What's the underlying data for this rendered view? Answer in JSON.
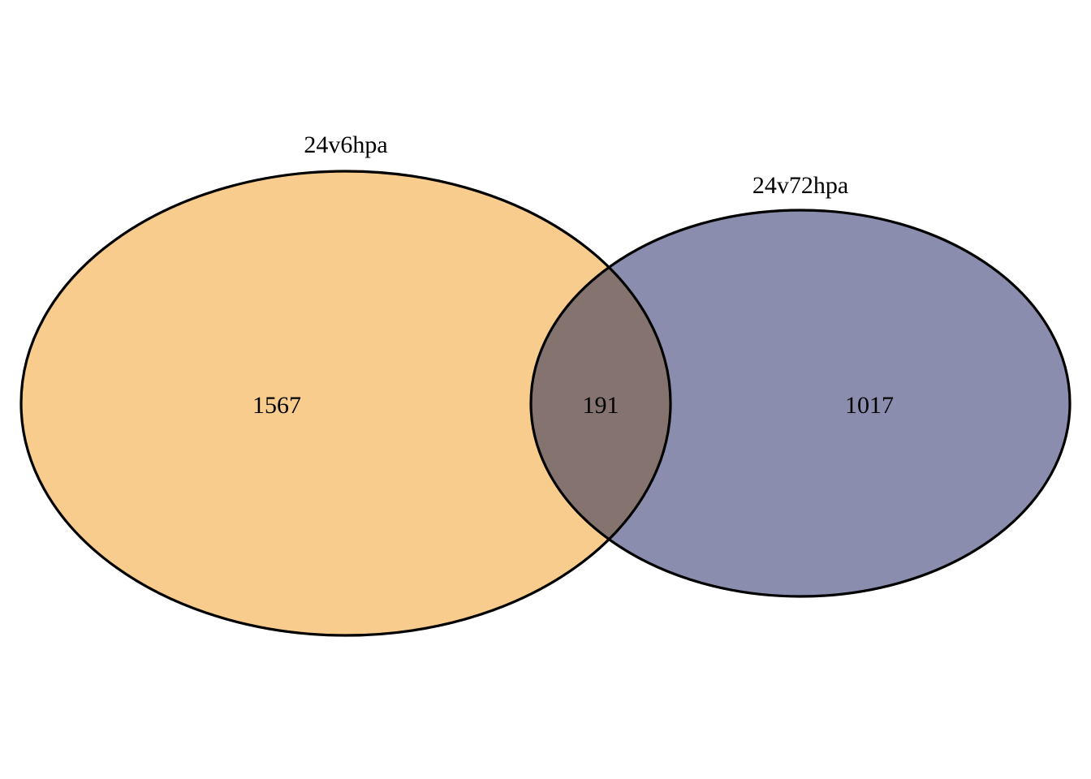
{
  "venn": {
    "sets": [
      {
        "name": "24v6hpa",
        "count": "1567",
        "color": "#f8cc8c"
      },
      {
        "name": "24v72hpa",
        "count": "1017",
        "color": "#8a8dad"
      }
    ],
    "intersection": {
      "count": "191",
      "color": "#857370"
    }
  }
}
